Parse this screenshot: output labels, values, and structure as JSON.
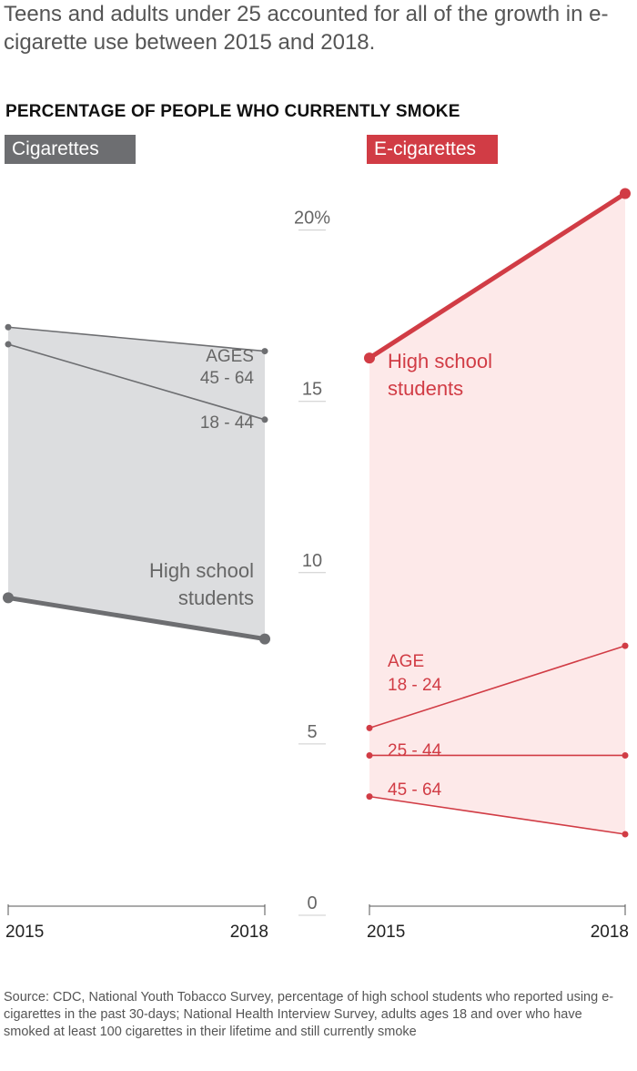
{
  "headline": "Teens and adults under 25 accounted for all of the growth in e-cigarette use between 2015 and 2018.",
  "colors": {
    "cigarettes": "#6d6e71",
    "cigarettes_fill": "#dcdddf",
    "ecigarettes": "#d13c45",
    "ecigarettes_fill": "#fde9e9",
    "axis": "#555555"
  },
  "chart_data": {
    "type": "line",
    "title": "PERCENTAGE OF PEOPLE WHO CURRENTLY SMOKE",
    "ylim": [
      0,
      21
    ],
    "y_ticks": [
      {
        "value": 20,
        "label": "20%"
      },
      {
        "value": 15,
        "label": "15"
      },
      {
        "value": 10,
        "label": "10"
      },
      {
        "value": 5,
        "label": "5"
      },
      {
        "value": 0,
        "label": "0"
      }
    ],
    "panels": [
      {
        "name": "Cigarettes",
        "x": [
          "2015",
          "2018"
        ],
        "series": [
          {
            "name": "45 - 64",
            "values": [
              16.9,
              16.2
            ],
            "bold": false,
            "labels": [
              "AGES",
              "45 - 64"
            ]
          },
          {
            "name": "18 - 44",
            "values": [
              16.4,
              14.2
            ],
            "bold": false,
            "labels": [
              "18 - 44"
            ]
          },
          {
            "name": "High school students",
            "values": [
              9.0,
              7.8
            ],
            "bold": true,
            "labels": [
              "High school",
              "students"
            ]
          }
        ]
      },
      {
        "name": "E-cigarettes",
        "x": [
          "2015",
          "2018"
        ],
        "series": [
          {
            "name": "High school students",
            "values": [
              16.0,
              20.8
            ],
            "bold": true,
            "labels": [
              "High school",
              "students"
            ]
          },
          {
            "name": "18 - 24",
            "values": [
              5.2,
              7.6
            ],
            "bold": false,
            "labels": [
              "AGE",
              "18 - 24"
            ]
          },
          {
            "name": "25 - 44",
            "values": [
              4.4,
              4.4
            ],
            "bold": false,
            "labels": [
              "25 - 44"
            ]
          },
          {
            "name": "45 - 64",
            "values": [
              3.2,
              2.1
            ],
            "bold": false,
            "labels": [
              "45 - 64"
            ]
          }
        ]
      }
    ]
  },
  "source": "Source:  CDC, National Youth Tobacco Survey, percentage of high school students who reported using e-cigarettes in the past 30-days; National Health Interview Survey, adults ages 18 and over who have smoked at least 100 cigarettes in their lifetime and still currently smoke"
}
